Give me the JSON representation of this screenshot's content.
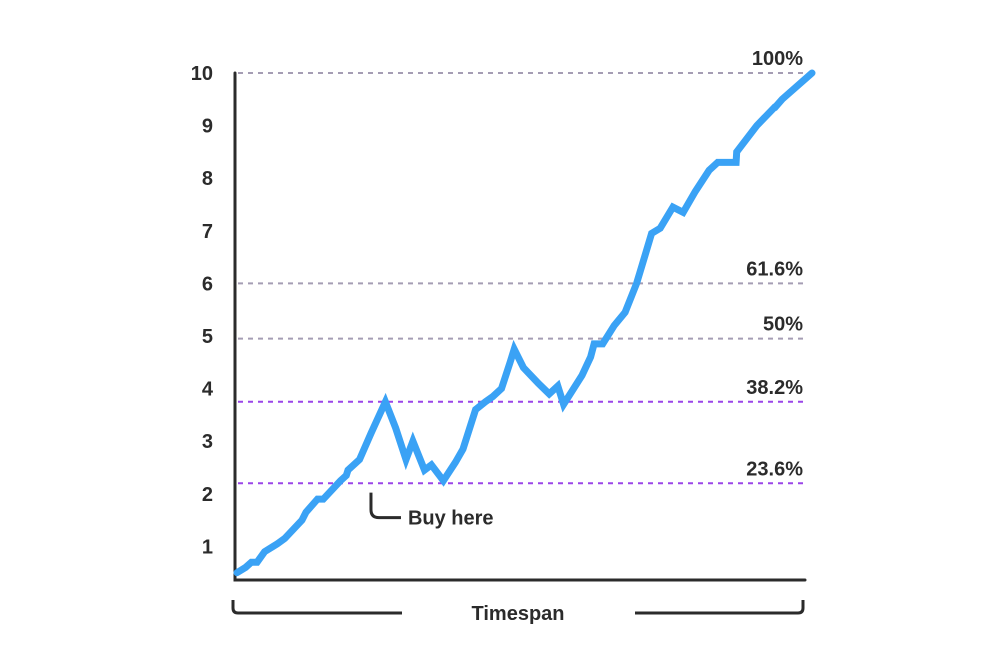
{
  "chart_data": {
    "type": "line",
    "xlabel": "Timespan",
    "ylabel": "",
    "ylim": [
      0.5,
      10
    ],
    "yticks": [
      1,
      2,
      3,
      4,
      5,
      6,
      7,
      8,
      9,
      10
    ],
    "grid": false,
    "series": [
      {
        "color": "#3aa2f5",
        "x": [
          0,
          1.5,
          2.5,
          3.5,
          4.8,
          6.3,
          7.0,
          8.3,
          11.3,
          12.0,
          14.0,
          15.0,
          18.0,
          19.0,
          19.3,
          21.3,
          23.3,
          25.8,
          27.6,
          29.4,
          30.6,
          32.6,
          33.8,
          35.9,
          38.0,
          39.3,
          41.5,
          43.2,
          44.5,
          46.0,
          47.5,
          48.2,
          49.8,
          52.4,
          54.3,
          55.8,
          56.8,
          60.0,
          61.5,
          62.1,
          63.6,
          65.6,
          67.5,
          69.5,
          71.0,
          72.1,
          73.6,
          75.8,
          77.6,
          79.7,
          82.1,
          83.6,
          86.8,
          86.9,
          90.4,
          93.5,
          93.6,
          94.8,
          100
        ],
        "y": [
          0.5,
          0.6,
          0.7,
          0.7,
          0.9,
          1.0,
          1.05,
          1.15,
          1.5,
          1.65,
          1.9,
          1.9,
          2.25,
          2.35,
          2.45,
          2.65,
          3.15,
          3.75,
          3.25,
          2.65,
          3.0,
          2.45,
          2.55,
          2.25,
          2.6,
          2.85,
          3.6,
          3.75,
          3.85,
          4.0,
          4.5,
          4.75,
          4.4,
          4.1,
          3.9,
          4.05,
          3.7,
          4.25,
          4.6,
          4.85,
          4.85,
          5.2,
          5.45,
          6.0,
          6.55,
          6.95,
          7.05,
          7.45,
          7.35,
          7.75,
          8.15,
          8.3,
          8.3,
          8.5,
          9.0,
          9.35,
          9.35,
          9.5,
          10.0
        ]
      }
    ],
    "levels": [
      {
        "label": "100%",
        "value": 10,
        "color": "#a59db4"
      },
      {
        "label": "61.6%",
        "value": 6,
        "color": "#a59db4"
      },
      {
        "label": "50%",
        "value": 4.95,
        "color": "#a59db4"
      },
      {
        "label": "38.2%",
        "value": 3.75,
        "color": "#9a45e8"
      },
      {
        "label": "23.6%",
        "value": 2.2,
        "color": "#9a45e8"
      }
    ],
    "annotations": [
      {
        "text": "Buy here",
        "x": 23.3,
        "y": 2.25
      }
    ]
  }
}
